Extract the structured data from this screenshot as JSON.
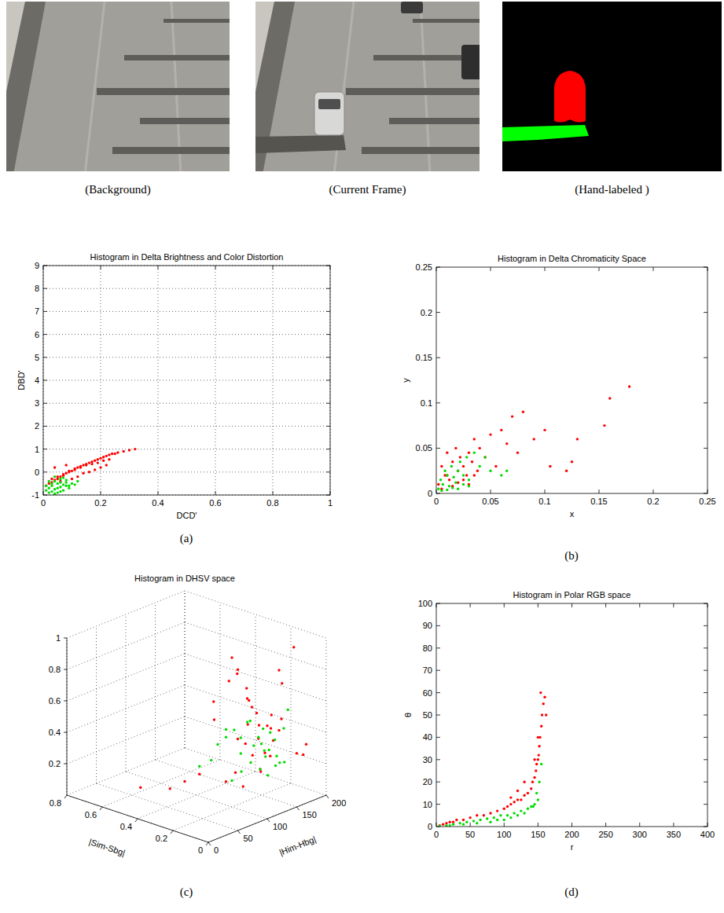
{
  "images": [
    {
      "caption": "(Background)"
    },
    {
      "caption": "(Current Frame)"
    },
    {
      "caption": "(Hand-labeled )"
    }
  ],
  "chart_data": [
    {
      "type": "scatter",
      "title": "Histogram in Delta Brightness and Color Distortion",
      "x_label": "DCD'",
      "y_label": "DBD'",
      "caption": "(a)",
      "xlim": [
        0,
        1
      ],
      "ylim": [
        -1,
        9
      ],
      "xticks": [
        0,
        0.2,
        0.4,
        0.6,
        0.8,
        1
      ],
      "yticks": [
        -1,
        0,
        1,
        2,
        3,
        4,
        5,
        6,
        7,
        8,
        9
      ],
      "grid": true,
      "series": [
        {
          "color": "#ff0000",
          "marker": "point",
          "x": [
            0.01,
            0.02,
            0.03,
            0.04,
            0.05,
            0.06,
            0.07,
            0.08,
            0.09,
            0.1,
            0.11,
            0.12,
            0.13,
            0.14,
            0.15,
            0.16,
            0.17,
            0.18,
            0.19,
            0.2,
            0.21,
            0.22,
            0.23,
            0.24,
            0.25,
            0.26,
            0.28,
            0.3,
            0.32,
            0.03,
            0.05,
            0.07,
            0.09,
            0.11,
            0.13,
            0.15,
            0.17,
            0.19,
            0.21,
            0.23,
            0.06,
            0.1,
            0.14,
            0.18,
            0.22,
            0.12,
            0.16,
            0.2,
            0.08,
            0.04
          ],
          "values": [
            -0.6,
            -0.5,
            -0.45,
            -0.35,
            -0.3,
            -0.2,
            -0.15,
            -0.05,
            0,
            0.05,
            0.1,
            0.2,
            0.25,
            0.3,
            0.35,
            0.4,
            0.45,
            0.5,
            0.55,
            0.6,
            0.65,
            0.7,
            0.75,
            0.8,
            0.8,
            0.85,
            0.9,
            0.95,
            1,
            -0.3,
            -0.2,
            -0.1,
            0.05,
            0.15,
            0.2,
            0.3,
            0.35,
            0.4,
            0.5,
            0.55,
            -0.4,
            -0.3,
            -0.05,
            0.1,
            0.3,
            -0.2,
            0,
            0.2,
            0.3,
            0.2
          ]
        },
        {
          "color": "#00dd00",
          "marker": "point",
          "x": [
            0.01,
            0.02,
            0.03,
            0.04,
            0.05,
            0.06,
            0.07,
            0.08,
            0.09,
            0.1,
            0.02,
            0.03,
            0.04,
            0.05,
            0.06,
            0.07,
            0.08,
            0.09,
            0.03,
            0.04,
            0.05,
            0.06,
            0.07,
            0.11,
            0.12,
            0.01,
            0.02,
            0.04,
            0.06,
            0.08
          ],
          "values": [
            -0.8,
            -0.7,
            -0.6,
            -0.75,
            -0.5,
            -0.65,
            -0.55,
            -0.45,
            -0.6,
            -0.5,
            -0.9,
            -0.85,
            -0.4,
            -0.7,
            -0.3,
            -0.8,
            -0.35,
            -0.7,
            -0.5,
            -0.2,
            -0.9,
            -0.45,
            -0.25,
            -0.55,
            -0.4,
            -0.6,
            -0.4,
            -0.95,
            -0.85,
            -0.6
          ]
        }
      ]
    },
    {
      "type": "scatter",
      "title": "Histogram in Delta Chromaticity Space",
      "x_label": "x",
      "y_label": "y",
      "caption": "(b)",
      "xlim": [
        0,
        0.25
      ],
      "ylim": [
        0,
        0.25
      ],
      "xticks": [
        0,
        0.05,
        0.1,
        0.15,
        0.2,
        0.25
      ],
      "yticks": [
        0,
        0.05,
        0.1,
        0.15,
        0.2,
        0.25
      ],
      "grid": false,
      "series": [
        {
          "color": "#ff0000",
          "marker": "point",
          "x": [
            0.002,
            0.005,
            0.008,
            0.01,
            0.012,
            0.015,
            0.018,
            0.02,
            0.022,
            0.025,
            0.028,
            0.03,
            0.033,
            0.035,
            0.038,
            0.04,
            0.045,
            0.05,
            0.055,
            0.06,
            0.065,
            0.07,
            0.075,
            0.08,
            0.09,
            0.1,
            0.105,
            0.12,
            0.125,
            0.13,
            0.155,
            0.16,
            0.178,
            0.005,
            0.01,
            0.015,
            0.02,
            0.025,
            0.03,
            0.035
          ],
          "values": [
            0.01,
            0.03,
            0.02,
            0.045,
            0.015,
            0.035,
            0.05,
            0.025,
            0.04,
            0.03,
            0.02,
            0.045,
            0.035,
            0.06,
            0.025,
            0.05,
            0.04,
            0.065,
            0.03,
            0.07,
            0.055,
            0.085,
            0.045,
            0.09,
            0.06,
            0.07,
            0.03,
            0.025,
            0.035,
            0.06,
            0.075,
            0.105,
            0.118,
            0.005,
            0.02,
            0.008,
            0.012,
            0.015,
            0.01,
            0.02
          ]
        },
        {
          "color": "#00dd00",
          "marker": "point",
          "x": [
            0.002,
            0.004,
            0.006,
            0.008,
            0.01,
            0.012,
            0.014,
            0.016,
            0.018,
            0.02,
            0.022,
            0.025,
            0.028,
            0.03,
            0.035,
            0.04,
            0.045,
            0.05,
            0.005,
            0.01,
            0.015,
            0.02,
            0.025,
            0.03,
            0.06,
            0.065
          ],
          "values": [
            0.005,
            0.015,
            0.01,
            0.025,
            0.02,
            0.008,
            0.03,
            0.018,
            0.012,
            0.025,
            0.035,
            0.02,
            0.04,
            0.015,
            0.045,
            0.03,
            0.04,
            0.025,
            0.003,
            0.004,
            0.006,
            0.005,
            0.01,
            0.008,
            0.02,
            0.025
          ]
        }
      ]
    },
    {
      "type": "scatter3d",
      "title": "Histogram in DHSV space",
      "x_label": "|Him-Hbg|",
      "y_label": "|Sim-Sbg|",
      "caption": "(c)",
      "xlim": [
        0,
        200
      ],
      "ylim": [
        0,
        0.8
      ],
      "zlim": [
        0,
        1
      ],
      "xticks": [
        0,
        50,
        100,
        150,
        200
      ],
      "yticks": [
        0,
        0.2,
        0.4,
        0.6,
        0.8
      ],
      "zticks": [
        0.2,
        0.4,
        0.6,
        0.8,
        1
      ],
      "grid": true,
      "series": [
        {
          "color": "#ff0000",
          "marker": "point",
          "x": [
            20,
            40,
            50,
            60,
            70,
            75,
            80,
            80,
            85,
            90,
            90,
            95,
            100,
            100,
            105,
            110,
            115,
            120,
            125,
            130,
            140,
            150,
            160,
            170,
            180,
            190,
            45,
            55,
            65,
            75,
            85,
            95,
            105,
            115,
            95,
            100,
            110,
            165,
            175,
            185
          ],
          "y": [
            0.45,
            0.35,
            0.3,
            0.25,
            0.2,
            0.22,
            0.15,
            0.1,
            0.12,
            0.08,
            0.05,
            0.1,
            0.06,
            0.04,
            0.12,
            0.08,
            0.1,
            0.05,
            0.06,
            0.08,
            0.1,
            0.1,
            0.12,
            0.15,
            0.2,
            0.15,
            0.05,
            0.03,
            0.02,
            0.04,
            0.06,
            0.02,
            0.03,
            0.05,
            0.15,
            0.2,
            0.12,
            0.05,
            0.03,
            0.08
          ],
          "z": [
            0.15,
            0.15,
            0.2,
            0.25,
            0.6,
            0.7,
            0.85,
            0.5,
            0.9,
            0.75,
            0.4,
            0.8,
            0.65,
            0.3,
            0.7,
            0.55,
            0.45,
            0.35,
            0.6,
            0.5,
            0.4,
            0.45,
            0.5,
            0.7,
            0.75,
            0.9,
            0.3,
            0.35,
            0.25,
            0.5,
            0.6,
            0.3,
            0.4,
            0.55,
            0.9,
            0.95,
            0.65,
            0.3,
            0.35,
            0.25
          ]
        },
        {
          "color": "#00dd00",
          "marker": "point",
          "x": [
            60,
            65,
            70,
            75,
            80,
            85,
            90,
            95,
            100,
            105,
            110,
            115,
            120,
            125,
            130,
            70,
            80,
            90,
            100,
            110,
            120,
            75,
            85,
            95,
            105,
            115,
            125,
            135,
            140,
            150
          ],
          "y": [
            0.25,
            0.2,
            0.18,
            0.15,
            0.12,
            0.1,
            0.08,
            0.06,
            0.05,
            0.04,
            0.05,
            0.06,
            0.05,
            0.04,
            0.03,
            0.1,
            0.08,
            0.06,
            0.04,
            0.03,
            0.02,
            0.15,
            0.1,
            0.08,
            0.05,
            0.04,
            0.03,
            0.02,
            0.04,
            0.05
          ],
          "z": [
            0.3,
            0.35,
            0.45,
            0.5,
            0.55,
            0.4,
            0.6,
            0.45,
            0.5,
            0.55,
            0.4,
            0.35,
            0.5,
            0.45,
            0.3,
            0.25,
            0.3,
            0.35,
            0.3,
            0.25,
            0.3,
            0.55,
            0.5,
            0.6,
            0.45,
            0.4,
            0.35,
            0.3,
            0.5,
            0.6
          ]
        }
      ]
    },
    {
      "type": "scatter",
      "title": "Histogram in Polar RGB space",
      "x_label": "r",
      "y_label": "θ",
      "caption": "(d)",
      "xlim": [
        0,
        400
      ],
      "ylim": [
        0,
        100
      ],
      "xticks": [
        0,
        50,
        100,
        150,
        200,
        250,
        300,
        350,
        400
      ],
      "yticks": [
        0,
        10,
        20,
        30,
        40,
        50,
        60,
        70,
        80,
        90,
        100
      ],
      "grid": false,
      "series": [
        {
          "color": "#ff0000",
          "marker": "point",
          "x": [
            5,
            10,
            15,
            20,
            25,
            30,
            40,
            50,
            60,
            70,
            80,
            90,
            100,
            105,
            110,
            115,
            120,
            125,
            130,
            135,
            140,
            142,
            145,
            147,
            148,
            150,
            151,
            152,
            153,
            155,
            156,
            158,
            160,
            162,
            130,
            120,
            110,
            145,
            150,
            154
          ],
          "values": [
            0.5,
            1,
            1.5,
            2,
            2,
            3,
            3,
            4,
            5,
            5,
            6,
            7,
            8,
            9,
            10,
            11,
            12,
            12,
            14,
            15,
            17,
            20,
            22,
            25,
            28,
            30,
            32,
            36,
            40,
            45,
            50,
            55,
            58,
            50,
            20,
            16,
            13,
            30,
            40,
            60
          ]
        },
        {
          "color": "#00dd00",
          "marker": "point",
          "x": [
            5,
            15,
            25,
            35,
            45,
            55,
            65,
            75,
            85,
            95,
            105,
            115,
            125,
            135,
            140,
            145,
            150,
            152,
            155,
            130,
            120,
            110,
            100,
            90,
            80,
            60,
            40,
            20,
            148,
            143
          ],
          "values": [
            0.3,
            0.5,
            1,
            1.5,
            2,
            2.5,
            3,
            3.5,
            4,
            5,
            5,
            6,
            7,
            8,
            9,
            10,
            12,
            20,
            28,
            6,
            5,
            4,
            3,
            3,
            2,
            1.5,
            1,
            0.5,
            15,
            9
          ]
        }
      ]
    }
  ]
}
